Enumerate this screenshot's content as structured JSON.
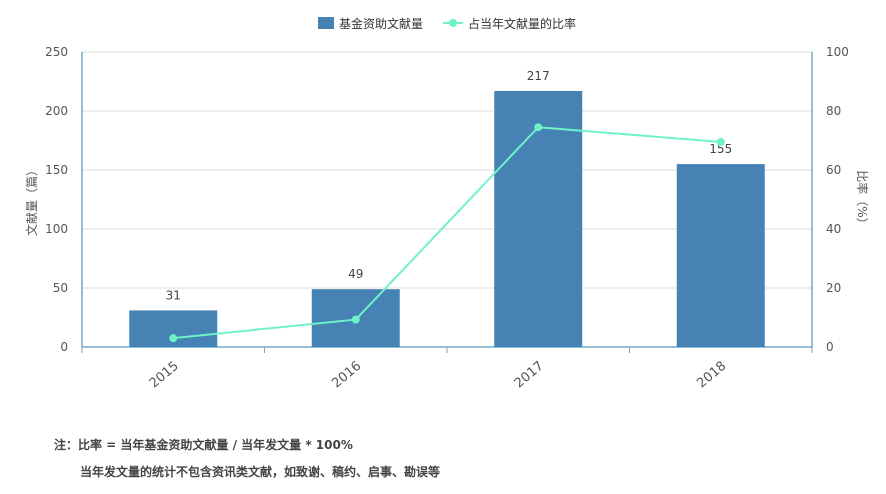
{
  "chart_data": {
    "type": "bar",
    "categories": [
      "2015",
      "2016",
      "2017",
      "2018"
    ],
    "series": [
      {
        "name": "基金资助文献量",
        "type": "bar",
        "axis": "left",
        "color": "#4682b4",
        "values": [
          31,
          49,
          217,
          155
        ]
      },
      {
        "name": "占当年文献量的比率",
        "type": "line",
        "axis": "right",
        "color": "#6ff2c8",
        "values": [
          3,
          9.3,
          74.5,
          69.5
        ]
      }
    ],
    "data_labels": [
      "31",
      "49",
      "217",
      "155"
    ],
    "ylabel": "文献量（篇）",
    "y2label": "比率（%）",
    "ylim": [
      0,
      250
    ],
    "y2lim": [
      0,
      100
    ],
    "yticks": [
      0,
      50,
      100,
      150,
      200,
      250
    ],
    "y2ticks": [
      0,
      20,
      40,
      60,
      80,
      100
    ],
    "grid": true,
    "legend_position": "top-center"
  },
  "notes": {
    "line1": "注：比率 = 当年基金资助文献量 / 当年发文量 * 100%",
    "line2": "当年发文量的统计不包含资讯类文献，如致谢、稿约、启事、勘误等"
  }
}
